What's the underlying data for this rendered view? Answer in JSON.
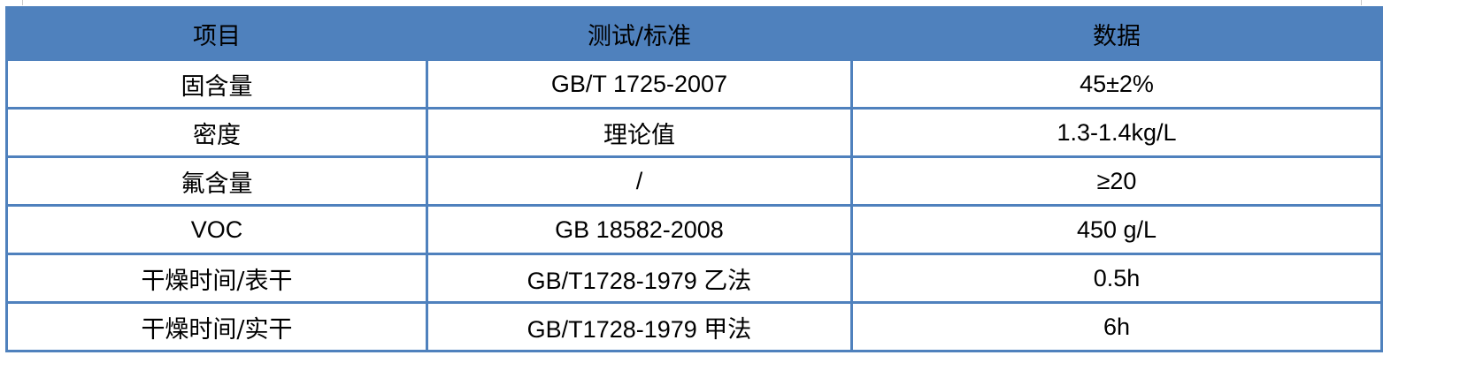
{
  "table": {
    "headers": [
      "项目",
      "测试/标准",
      "数据"
    ],
    "rows": [
      [
        "固含量",
        "GB/T 1725-2007",
        "45±2%"
      ],
      [
        "密度",
        "理论值",
        "1.3-1.4kg/L"
      ],
      [
        "氟含量",
        "/",
        "≥20"
      ],
      [
        "VOC",
        "GB 18582-2008",
        "450 g/L"
      ],
      [
        "干燥时间/表干",
        "GB/T1728-1979 乙法",
        "0.5h"
      ],
      [
        "干燥时间/实干",
        "GB/T1728-1979 甲法",
        "6h"
      ]
    ]
  },
  "colors": {
    "header_bg": "#4f81bd",
    "border": "#4f81bd"
  }
}
